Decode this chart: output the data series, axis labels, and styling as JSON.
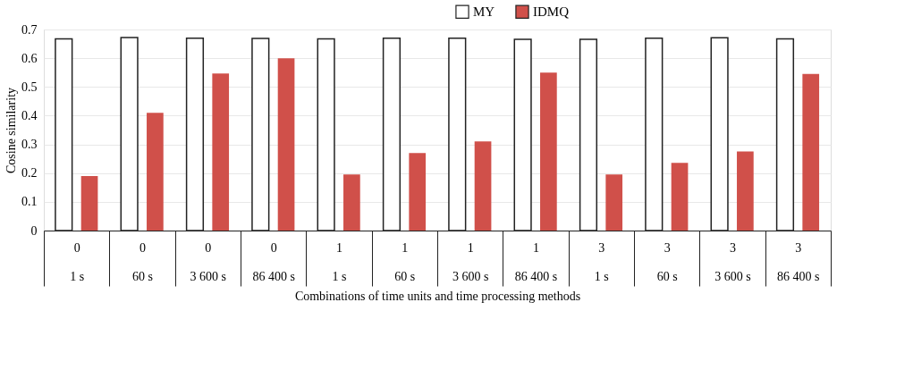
{
  "chart_data": {
    "type": "bar",
    "xlabel": "Combinations of time units and time processing methods",
    "ylabel": "Cosine similarity",
    "categories": [
      "0\n1  s",
      "0\n60  s",
      "0\n3 600 s",
      "0\n86 400 s",
      "1\n1 s",
      "1\n60  s",
      "1\n3 600  s",
      "1\n86 400 s",
      "3\n1 s",
      "3\n60  s",
      "3\n3 600  s",
      "3\n86 400 s"
    ],
    "series": [
      {
        "name": "MY",
        "color": "#ffffff",
        "values": [
          0.667,
          0.672,
          0.67,
          0.669,
          0.667,
          0.67,
          0.67,
          0.666,
          0.666,
          0.67,
          0.671,
          0.667
        ]
      },
      {
        "name": "IDMQ",
        "color": "#d0504a",
        "values": [
          0.19,
          0.41,
          0.547,
          0.6,
          0.195,
          0.27,
          0.31,
          0.55,
          0.195,
          0.236,
          0.275,
          0.545
        ]
      }
    ],
    "ylim": [
      0,
      0.7
    ],
    "yticks": [
      0,
      0.1,
      0.2,
      0.3,
      0.4,
      0.5,
      0.6,
      0.7
    ],
    "grid": "y",
    "legend": "top"
  }
}
